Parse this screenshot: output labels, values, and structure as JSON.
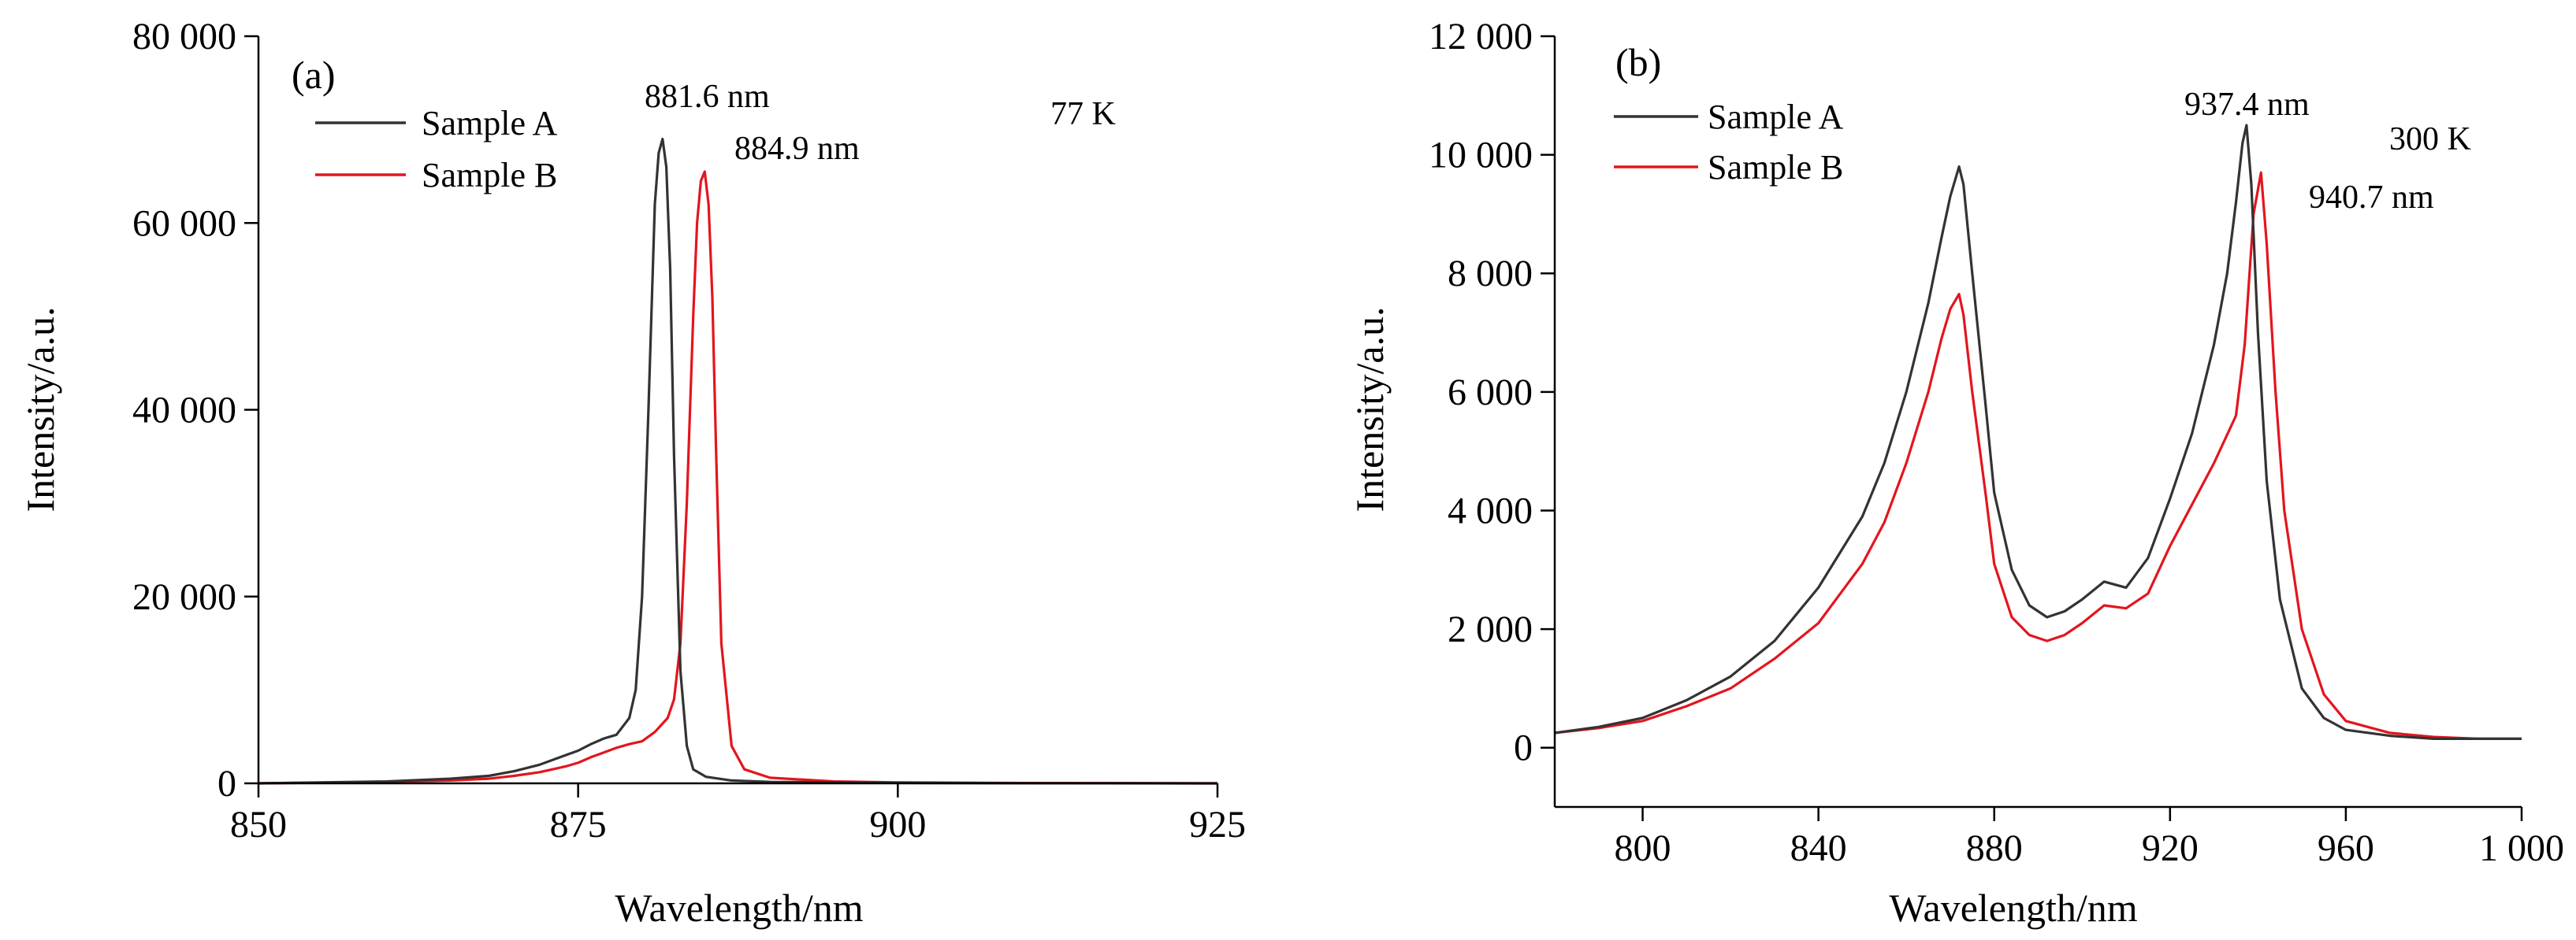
{
  "colors": {
    "sample_a": "#333333",
    "sample_b": "#e3151e",
    "axis": "#000000"
  },
  "chart_data": [
    {
      "type": "line",
      "panel_label": "(a)",
      "xlabel": "Wavelength/nm",
      "ylabel": "Intensity/a.u.",
      "xlim": [
        850,
        925
      ],
      "ylim": [
        0,
        80000
      ],
      "x_ticks": [
        850,
        875,
        900,
        925
      ],
      "x_tick_labels": [
        "850",
        "875",
        "900",
        "925"
      ],
      "y_ticks": [
        0,
        20000,
        40000,
        60000,
        80000
      ],
      "y_tick_labels": [
        "0",
        "20 000",
        "40 000",
        "60 000",
        "80 000"
      ],
      "legend": {
        "position": "top-left",
        "entries": [
          "Sample A",
          "Sample B"
        ]
      },
      "annotations": [
        "881.6 nm",
        "884.9 nm",
        "77 K"
      ],
      "series": [
        {
          "name": "Sample A",
          "color": "#333333",
          "x": [
            850,
            860,
            865,
            868,
            870,
            872,
            874,
            875,
            876,
            877,
            878,
            879,
            879.5,
            880,
            880.5,
            881,
            881.3,
            881.6,
            881.9,
            882.2,
            882.5,
            883,
            883.5,
            884,
            885,
            887,
            890,
            900,
            910,
            925
          ],
          "y": [
            0,
            200,
            500,
            800,
            1300,
            2000,
            3000,
            3500,
            4200,
            4800,
            5200,
            7000,
            10000,
            20000,
            40000,
            62000,
            67500,
            69000,
            66000,
            55000,
            35000,
            12000,
            4000,
            1500,
            700,
            300,
            150,
            50,
            20,
            0
          ]
        },
        {
          "name": "Sample B",
          "color": "#e3151e",
          "x": [
            850,
            860,
            865,
            868,
            870,
            872,
            874,
            875,
            876,
            877,
            878,
            879,
            880,
            881,
            882,
            882.5,
            883,
            883.5,
            884,
            884.3,
            884.6,
            884.9,
            885.2,
            885.5,
            885.8,
            886.2,
            887,
            888,
            890,
            895,
            900,
            910,
            925
          ],
          "y": [
            0,
            150,
            300,
            500,
            800,
            1200,
            1800,
            2200,
            2800,
            3300,
            3800,
            4200,
            4500,
            5500,
            7000,
            9000,
            15000,
            30000,
            50000,
            60000,
            64500,
            65500,
            62000,
            52000,
            35000,
            15000,
            4000,
            1500,
            600,
            200,
            100,
            30,
            0
          ]
        }
      ]
    },
    {
      "type": "line",
      "panel_label": "(b)",
      "xlabel": "Wavelength/nm",
      "ylabel": "Intensity/a.u.",
      "xlim": [
        780,
        1000
      ],
      "ylim": [
        -1000,
        12000
      ],
      "x_ticks": [
        800,
        840,
        880,
        920,
        960,
        1000
      ],
      "x_tick_labels": [
        "800",
        "840",
        "880",
        "920",
        "960",
        "1 000"
      ],
      "y_ticks": [
        0,
        2000,
        4000,
        6000,
        8000,
        10000,
        12000
      ],
      "y_tick_labels": [
        "0",
        "2 000",
        "4 000",
        "6 000",
        "8 000",
        "10 000",
        "12 000"
      ],
      "legend": {
        "position": "top-left",
        "entries": [
          "Sample A",
          "Sample B"
        ]
      },
      "annotations": [
        "937.4 nm",
        "300 K",
        "940.7 nm"
      ],
      "series": [
        {
          "name": "Sample A",
          "color": "#333333",
          "x": [
            780,
            790,
            800,
            810,
            820,
            830,
            840,
            850,
            855,
            860,
            865,
            868,
            870,
            872,
            873,
            875,
            878,
            880,
            884,
            888,
            892,
            896,
            900,
            905,
            910,
            915,
            920,
            925,
            930,
            933,
            935,
            936.5,
            937.4,
            938.5,
            940,
            942,
            945,
            950,
            955,
            960,
            970,
            980,
            990,
            1000
          ],
          "y": [
            250,
            350,
            500,
            800,
            1200,
            1800,
            2700,
            3900,
            4800,
            6000,
            7500,
            8600,
            9300,
            9800,
            9500,
            8000,
            5800,
            4300,
            3000,
            2400,
            2200,
            2300,
            2500,
            2800,
            2700,
            3200,
            4200,
            5300,
            6800,
            8000,
            9200,
            10200,
            10500,
            9500,
            7000,
            4500,
            2500,
            1000,
            500,
            300,
            200,
            150,
            150,
            150
          ]
        },
        {
          "name": "Sample B",
          "color": "#e3151e",
          "x": [
            780,
            790,
            800,
            810,
            820,
            830,
            840,
            850,
            855,
            860,
            865,
            868,
            870,
            872,
            873,
            875,
            878,
            880,
            884,
            888,
            892,
            896,
            900,
            905,
            910,
            915,
            920,
            925,
            930,
            935,
            937,
            939,
            940.7,
            942,
            944,
            946,
            950,
            955,
            960,
            970,
            980,
            990,
            1000
          ],
          "y": [
            250,
            330,
            450,
            700,
            1000,
            1500,
            2100,
            3100,
            3800,
            4800,
            6000,
            6900,
            7400,
            7650,
            7300,
            6000,
            4300,
            3100,
            2200,
            1900,
            1800,
            1900,
            2100,
            2400,
            2350,
            2600,
            3400,
            4100,
            4800,
            5600,
            6800,
            9000,
            9700,
            8500,
            6000,
            4000,
            2000,
            900,
            450,
            250,
            180,
            150,
            150
          ]
        }
      ]
    }
  ]
}
